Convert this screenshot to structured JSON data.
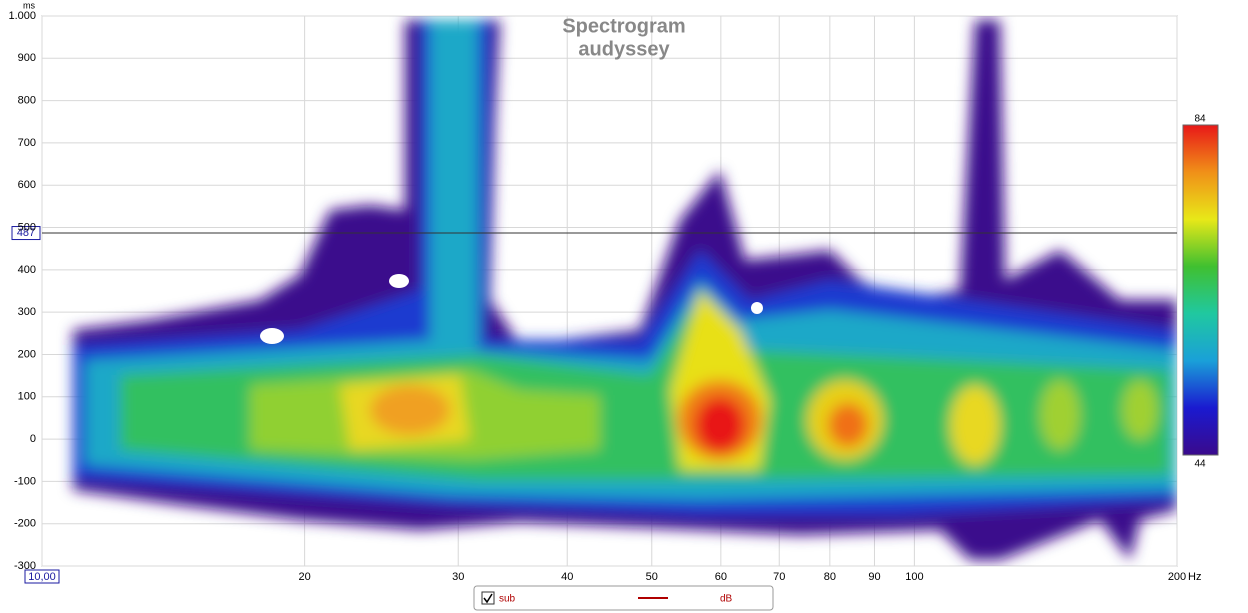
{
  "chart_data": {
    "type": "spectrogram",
    "title": "Spectrogram",
    "subtitle": "audyssey",
    "y_unit": "ms",
    "x_unit": "Hz",
    "log_x": true,
    "xlim": [
      10,
      200
    ],
    "xticks": [
      {
        "value": 10,
        "label": "10,00"
      },
      20,
      30,
      40,
      50,
      60,
      70,
      80,
      90,
      100,
      200
    ],
    "ylim": [
      -300,
      1000
    ],
    "yticks": [
      {
        "value": 1000,
        "label": "1.000"
      },
      900,
      800,
      700,
      600,
      500,
      400,
      300,
      200,
      100,
      0,
      -100,
      -200,
      -300
    ],
    "grid": true,
    "cursor_y": 487,
    "colorbar": {
      "min": 44,
      "max": 84,
      "colors": [
        "#3a0a8c",
        "#1a1ad0",
        "#1aa0d8",
        "#20c8a0",
        "#40c030",
        "#e8e818",
        "#f09018",
        "#e81818"
      ]
    },
    "series": [
      {
        "name": "sub",
        "color": "#b00000"
      }
    ],
    "legend_unit": "dB"
  }
}
